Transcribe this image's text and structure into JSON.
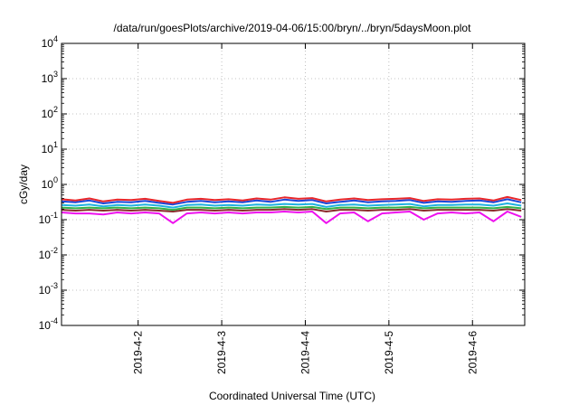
{
  "chart_data": {
    "type": "line",
    "title": "/data/run/goesPlots/archive/2019-04-06/15:00/bryn/../bryn/5daysMoon.plot",
    "xlabel": "Coordinated Universal Time (UTC)",
    "ylabel": "cGy/day",
    "yscale": "log",
    "ylim": [
      0.0001,
      10000
    ],
    "xlim": [
      "2019-04-01T02:00",
      "2019-04-06T15:00"
    ],
    "grid": true,
    "legend": "none",
    "y_ticks": [
      {
        "value": 0.0001,
        "base": "10",
        "exp": "-4"
      },
      {
        "value": 0.001,
        "base": "10",
        "exp": "-3"
      },
      {
        "value": 0.01,
        "base": "10",
        "exp": "-2"
      },
      {
        "value": 0.1,
        "base": "10",
        "exp": "-1"
      },
      {
        "value": 1,
        "base": "10",
        "exp": "0"
      },
      {
        "value": 10,
        "base": "10",
        "exp": "1"
      },
      {
        "value": 100,
        "base": "10",
        "exp": "2"
      },
      {
        "value": 1000,
        "base": "10",
        "exp": "3"
      },
      {
        "value": 10000,
        "base": "10",
        "exp": "4"
      }
    ],
    "x_ticks": [
      {
        "value": "2019-04-02T00:00",
        "label": "2019-4-2"
      },
      {
        "value": "2019-04-03T00:00",
        "label": "2019-4-3"
      },
      {
        "value": "2019-04-04T00:00",
        "label": "2019-4-4"
      },
      {
        "value": "2019-04-05T00:00",
        "label": "2019-4-5"
      },
      {
        "value": "2019-04-06T00:00",
        "label": "2019-4-6"
      }
    ],
    "x": [
      "2019-04-01T02:00",
      "2019-04-01T06:00",
      "2019-04-01T10:00",
      "2019-04-01T14:00",
      "2019-04-01T18:00",
      "2019-04-01T22:00",
      "2019-04-02T02:00",
      "2019-04-02T06:00",
      "2019-04-02T10:00",
      "2019-04-02T14:00",
      "2019-04-02T18:00",
      "2019-04-02T22:00",
      "2019-04-03T02:00",
      "2019-04-03T06:00",
      "2019-04-03T10:00",
      "2019-04-03T14:00",
      "2019-04-03T18:00",
      "2019-04-03T22:00",
      "2019-04-04T02:00",
      "2019-04-04T06:00",
      "2019-04-04T10:00",
      "2019-04-04T14:00",
      "2019-04-04T18:00",
      "2019-04-04T22:00",
      "2019-04-05T02:00",
      "2019-04-05T06:00",
      "2019-04-05T10:00",
      "2019-04-05T14:00",
      "2019-04-05T18:00",
      "2019-04-05T22:00",
      "2019-04-06T02:00",
      "2019-04-06T06:00",
      "2019-04-06T10:00",
      "2019-04-06T14:00"
    ],
    "series": [
      {
        "color": "#e8262a",
        "values": [
          0.38,
          0.35,
          0.4,
          0.33,
          0.37,
          0.36,
          0.39,
          0.34,
          0.3,
          0.37,
          0.39,
          0.36,
          0.38,
          0.35,
          0.4,
          0.37,
          0.43,
          0.39,
          0.41,
          0.33,
          0.37,
          0.4,
          0.36,
          0.38,
          0.39,
          0.41,
          0.34,
          0.38,
          0.37,
          0.39,
          0.4,
          0.35,
          0.44,
          0.36
        ]
      },
      {
        "color": "#1a46d8",
        "values": [
          0.33,
          0.31,
          0.35,
          0.29,
          0.32,
          0.31,
          0.34,
          0.3,
          0.27,
          0.32,
          0.34,
          0.31,
          0.33,
          0.31,
          0.35,
          0.32,
          0.37,
          0.34,
          0.36,
          0.29,
          0.32,
          0.35,
          0.31,
          0.33,
          0.34,
          0.36,
          0.3,
          0.33,
          0.32,
          0.34,
          0.35,
          0.31,
          0.38,
          0.31
        ]
      },
      {
        "color": "#1fb2e0",
        "values": [
          0.26,
          0.25,
          0.27,
          0.24,
          0.26,
          0.25,
          0.27,
          0.25,
          0.22,
          0.26,
          0.27,
          0.25,
          0.26,
          0.25,
          0.27,
          0.26,
          0.28,
          0.27,
          0.28,
          0.23,
          0.26,
          0.27,
          0.25,
          0.26,
          0.27,
          0.28,
          0.24,
          0.26,
          0.26,
          0.27,
          0.27,
          0.25,
          0.29,
          0.25
        ]
      },
      {
        "color": "#33b24a",
        "values": [
          0.22,
          0.21,
          0.22,
          0.21,
          0.22,
          0.21,
          0.22,
          0.21,
          0.19,
          0.22,
          0.22,
          0.21,
          0.22,
          0.21,
          0.22,
          0.22,
          0.23,
          0.22,
          0.23,
          0.2,
          0.22,
          0.22,
          0.21,
          0.22,
          0.22,
          0.23,
          0.21,
          0.22,
          0.22,
          0.22,
          0.22,
          0.21,
          0.23,
          0.21
        ]
      },
      {
        "color": "#8a2a2a",
        "values": [
          0.19,
          0.18,
          0.19,
          0.18,
          0.19,
          0.18,
          0.19,
          0.18,
          0.17,
          0.19,
          0.19,
          0.18,
          0.19,
          0.18,
          0.19,
          0.19,
          0.2,
          0.19,
          0.2,
          0.17,
          0.19,
          0.19,
          0.18,
          0.19,
          0.19,
          0.2,
          0.18,
          0.19,
          0.19,
          0.19,
          0.19,
          0.18,
          0.2,
          0.18
        ]
      },
      {
        "color": "#ee10ee",
        "values": [
          0.16,
          0.15,
          0.15,
          0.14,
          0.16,
          0.15,
          0.16,
          0.15,
          0.08,
          0.15,
          0.16,
          0.15,
          0.16,
          0.15,
          0.16,
          0.16,
          0.17,
          0.16,
          0.17,
          0.08,
          0.15,
          0.16,
          0.09,
          0.15,
          0.16,
          0.17,
          0.1,
          0.15,
          0.16,
          0.15,
          0.16,
          0.09,
          0.17,
          0.12
        ]
      }
    ]
  }
}
